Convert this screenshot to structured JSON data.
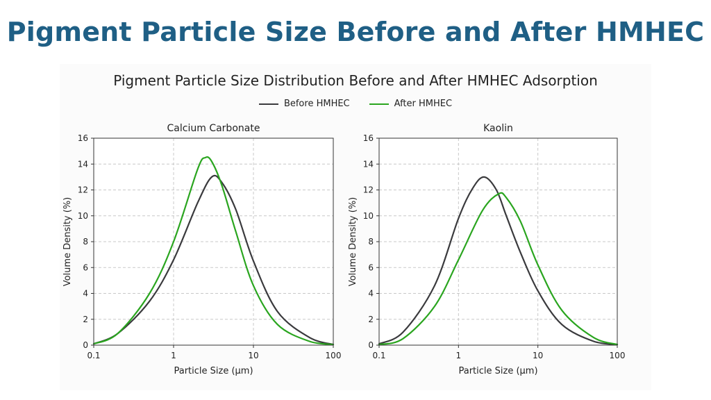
{
  "page": {
    "title": "Pigment Particle Size Before and After HMHEC"
  },
  "figure": {
    "title": "Pigment Particle Size Distribution Before and After HMHEC Adsorption"
  },
  "chart_data": [
    {
      "type": "line",
      "title": "Calcium Carbonate",
      "xlabel": "Particle Size (μm)",
      "ylabel": "Volume Density (%)",
      "x_scale": "log",
      "xlim": [
        0.1,
        100
      ],
      "ylim": [
        0,
        16
      ],
      "x_ticks": [
        "0.1",
        "1",
        "10",
        "100"
      ],
      "y_ticks": [
        "0",
        "2",
        "4",
        "6",
        "8",
        "10",
        "12",
        "14",
        "16"
      ],
      "grid": true,
      "legend": "top-center",
      "series": [
        {
          "name": "Before HMHEC",
          "color": "#3a3a3d",
          "x": [
            0.1,
            0.2,
            0.5,
            1,
            2,
            3,
            4,
            6,
            10,
            20,
            50,
            100
          ],
          "y": [
            0.1,
            0.9,
            3.4,
            6.6,
            11.0,
            13.0,
            12.6,
            10.5,
            6.5,
            2.6,
            0.6,
            0.05
          ]
        },
        {
          "name": "After HMHEC",
          "color": "#2aa51f",
          "x": [
            0.1,
            0.2,
            0.5,
            1,
            2,
            2.5,
            3,
            4,
            6,
            10,
            20,
            50,
            100
          ],
          "y": [
            0.1,
            0.9,
            4.0,
            8.0,
            13.6,
            14.5,
            14.2,
            12.4,
            8.8,
            4.6,
            1.6,
            0.3,
            0.05
          ]
        }
      ]
    },
    {
      "type": "line",
      "title": "Kaolin",
      "xlabel": "Particle Size (μm)",
      "ylabel": "Volume Density (%)",
      "x_scale": "log",
      "xlim": [
        0.1,
        100
      ],
      "ylim": [
        0,
        16
      ],
      "x_ticks": [
        "0.1",
        "1",
        "10",
        "100"
      ],
      "y_ticks": [
        "0",
        "2",
        "4",
        "6",
        "8",
        "10",
        "12",
        "14",
        "16"
      ],
      "grid": true,
      "legend": "top-center",
      "series": [
        {
          "name": "Before HMHEC",
          "color": "#3a3a3d",
          "x": [
            0.1,
            0.2,
            0.5,
            1,
            1.5,
            2.1,
            3,
            4,
            6,
            10,
            20,
            50,
            100
          ],
          "y": [
            0.1,
            1.0,
            4.6,
            9.8,
            12.1,
            13.0,
            12.0,
            10.0,
            7.2,
            4.2,
            1.6,
            0.3,
            0.05
          ]
        },
        {
          "name": "After HMHEC",
          "color": "#2aa51f",
          "x": [
            0.1,
            0.2,
            0.5,
            1,
            2,
            3.2,
            4,
            6,
            10,
            20,
            50,
            100
          ],
          "y": [
            0.05,
            0.5,
            3.0,
            6.6,
            10.4,
            11.7,
            11.4,
            9.6,
            6.2,
            2.7,
            0.6,
            0.05
          ]
        }
      ]
    }
  ]
}
